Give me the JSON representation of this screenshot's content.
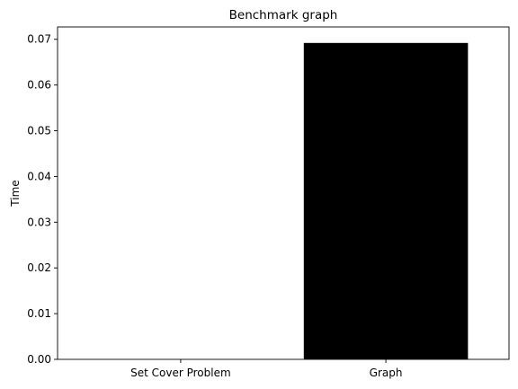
{
  "chart_data": {
    "type": "bar",
    "title": "Benchmark graph",
    "xlabel": "",
    "ylabel": "Time",
    "categories": [
      "Set Cover Problem",
      "Graph"
    ],
    "values": [
      0.0,
      0.0692
    ],
    "ylim": [
      0,
      0.0727
    ],
    "yticks": [
      0.0,
      0.01,
      0.02,
      0.03,
      0.04,
      0.05,
      0.06,
      0.07
    ],
    "ytick_labels": [
      "0.00",
      "0.01",
      "0.02",
      "0.03",
      "0.04",
      "0.05",
      "0.06",
      "0.07"
    ],
    "bar_color": "#000000",
    "grid": false
  }
}
